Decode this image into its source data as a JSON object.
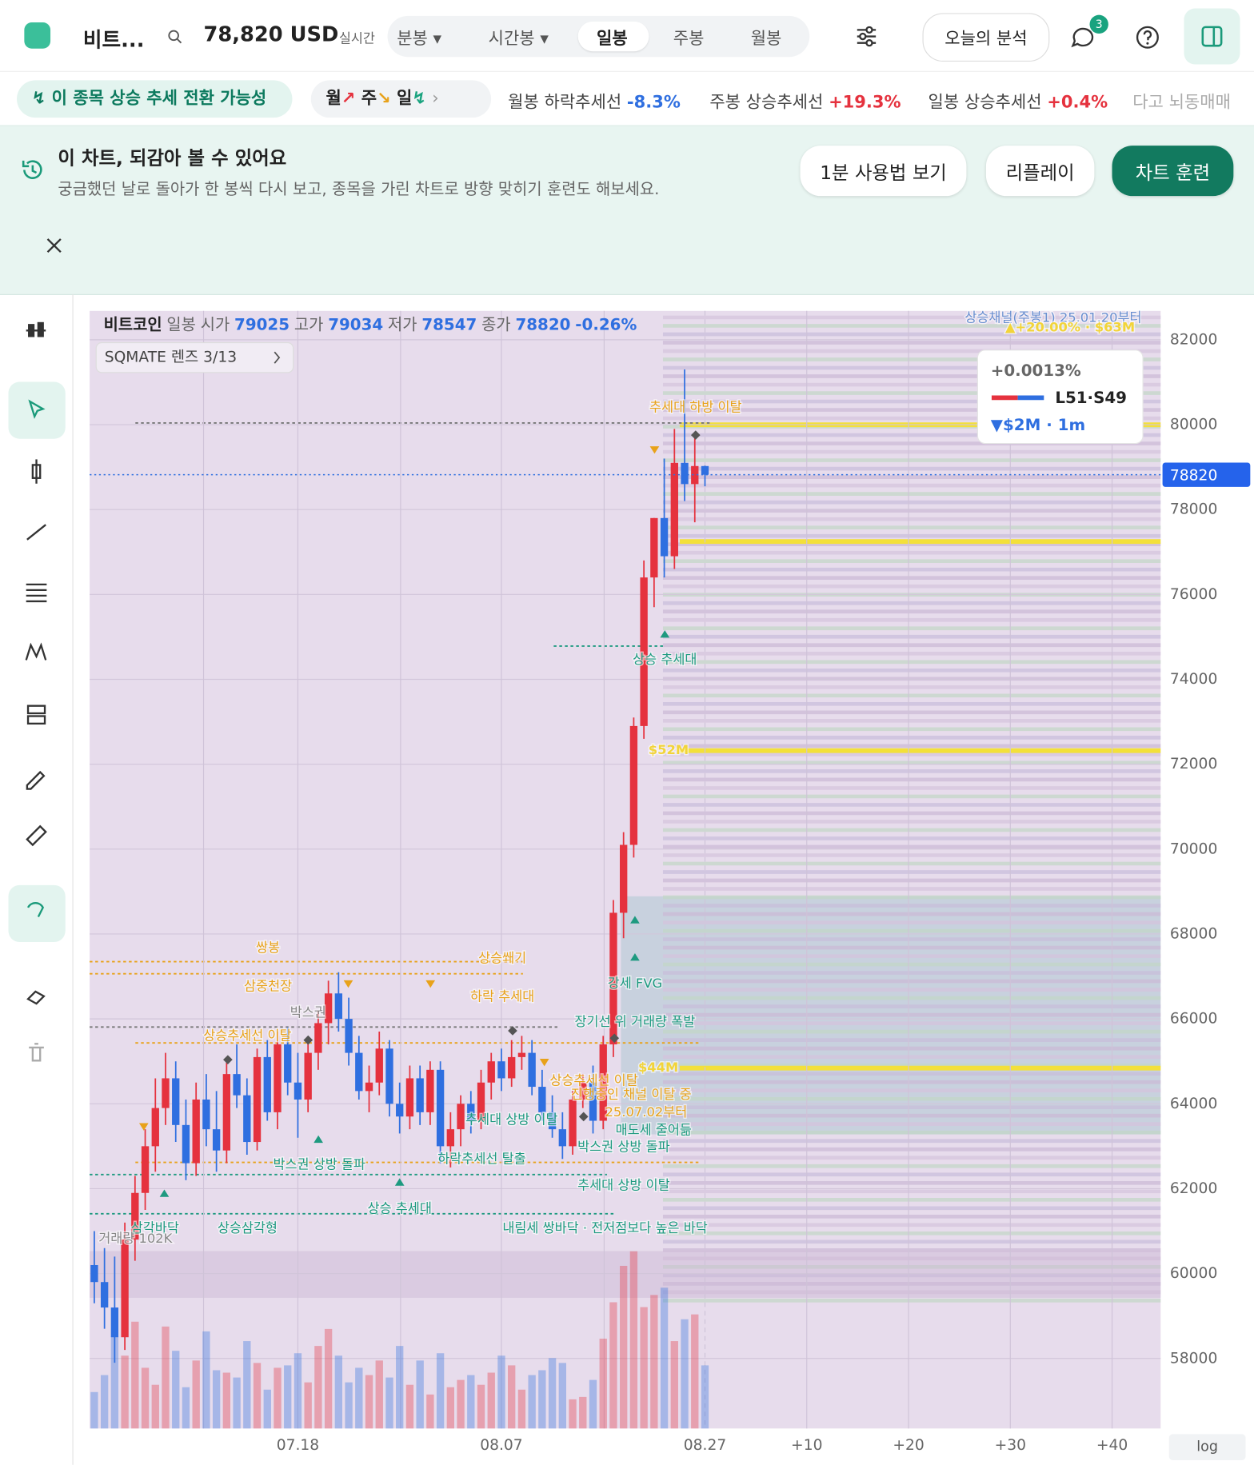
{
  "header": {
    "symbol": "비트...",
    "price": "78,820 USD",
    "realtime": "실시간",
    "tabs": [
      "분봉",
      "시간봉",
      "일봉",
      "주봉",
      "월봉"
    ],
    "analysis": "오늘의 분석",
    "badge": "3"
  },
  "signals": {
    "main": "이 종목 상승 추세 전환 가능성",
    "periods": [
      "월",
      "주",
      "일"
    ],
    "items": [
      {
        "label": "월봉 하락추세선",
        "value": "-8.3%"
      },
      {
        "label": "주봉 상승추세선",
        "value": "+19.3%"
      },
      {
        "label": "일봉 상승추세선",
        "value": "+0.4%"
      }
    ],
    "more": "다고 뇌동매매"
  },
  "banner": {
    "title": "이 차트, 되감아 볼 수 있어요",
    "text": "궁금했던 날로 돌아가 한 봉씩 다시 보고, 종목을 가린 차트로 방향 맞히기 훈련도 해보세요.",
    "buttons": [
      "1분 사용법 보기",
      "리플레이",
      "차트 훈련"
    ]
  },
  "chart_data": {
    "type": "candlestick",
    "legend": {
      "name": "비트코인",
      "period": "일봉",
      "open_label": "시가",
      "open": 79025,
      "high_label": "고가",
      "high": 79034,
      "low_label": "저가",
      "low": 78547,
      "close_label": "종가",
      "close": 78820,
      "change": "-0.26%"
    },
    "lens": "SQMATE 렌즈  3/13",
    "tooltip": {
      "pct": "+0.0013%",
      "ratio": "L51·S49",
      "flow": "▼$2M · 1m"
    },
    "current_price": 78820,
    "up_color": "#e5323e",
    "down_color": "#2f6fe0",
    "ylim": [
      56350,
      82680
    ],
    "yticks": [
      58000,
      60000,
      62000,
      64000,
      66000,
      68000,
      70000,
      72000,
      74000,
      76000,
      78000,
      80000,
      82000
    ],
    "categories": [
      null,
      null,
      null,
      null,
      null,
      null,
      null,
      null,
      null,
      null,
      null,
      null,
      null,
      null,
      null,
      null,
      null,
      null,
      null,
      null,
      "07.18",
      null,
      null,
      null,
      null,
      null,
      null,
      null,
      null,
      null,
      null,
      null,
      null,
      null,
      null,
      null,
      null,
      null,
      null,
      null,
      "08.07",
      null,
      null,
      null,
      null,
      null,
      null,
      null,
      null,
      null,
      null,
      null,
      null,
      null,
      null,
      null,
      null,
      null,
      null,
      null,
      "08.27"
    ],
    "future_ticks": [
      "+10",
      "+20",
      "+30",
      "+40"
    ],
    "scale_mode": "log",
    "candles": [
      [
        60200,
        61000,
        59300,
        59800
      ],
      [
        59800,
        60600,
        58700,
        59200
      ],
      [
        59200,
        60400,
        57900,
        58500
      ],
      [
        58500,
        61200,
        58200,
        60800
      ],
      [
        60800,
        62300,
        60300,
        61900
      ],
      [
        61900,
        63400,
        61500,
        63000
      ],
      [
        63000,
        64600,
        62400,
        63900
      ],
      [
        63900,
        65200,
        63500,
        64600
      ],
      [
        64600,
        65000,
        63100,
        63500
      ],
      [
        63500,
        64100,
        62200,
        62600
      ],
      [
        62600,
        64500,
        62300,
        64100
      ],
      [
        64100,
        64700,
        63000,
        63400
      ],
      [
        63400,
        64300,
        62400,
        62900
      ],
      [
        62900,
        65000,
        62600,
        64700
      ],
      [
        64700,
        65400,
        63900,
        64200
      ],
      [
        64200,
        64600,
        62800,
        63100
      ],
      [
        63100,
        65300,
        62900,
        65100
      ],
      [
        65100,
        65500,
        63600,
        63800
      ],
      [
        63800,
        65700,
        63400,
        65400
      ],
      [
        65400,
        65800,
        64200,
        64500
      ],
      [
        64500,
        65200,
        63200,
        64100
      ],
      [
        64100,
        65500,
        63800,
        65200
      ],
      [
        65200,
        66200,
        64800,
        65900
      ],
      [
        65900,
        66900,
        65400,
        66600
      ],
      [
        66600,
        67100,
        65700,
        66000
      ],
      [
        66000,
        66500,
        64900,
        65200
      ],
      [
        65200,
        65600,
        64100,
        64300
      ],
      [
        64300,
        64900,
        63800,
        64500
      ],
      [
        64500,
        65700,
        64200,
        65300
      ],
      [
        65300,
        65500,
        63700,
        64000
      ],
      [
        64000,
        64500,
        63300,
        63700
      ],
      [
        63700,
        64900,
        63400,
        64600
      ],
      [
        64600,
        64900,
        63500,
        63800
      ],
      [
        63800,
        65000,
        63500,
        64800
      ],
      [
        64800,
        65000,
        62600,
        63000
      ],
      [
        63000,
        63800,
        62500,
        63400
      ],
      [
        63400,
        64200,
        63000,
        64000
      ],
      [
        64000,
        64300,
        63300,
        63600
      ],
      [
        63600,
        64800,
        63400,
        64500
      ],
      [
        64500,
        65200,
        64100,
        65000
      ],
      [
        65000,
        65300,
        64300,
        64600
      ],
      [
        64600,
        65500,
        64400,
        65100
      ],
      [
        65100,
        65600,
        64800,
        65200
      ],
      [
        65200,
        65500,
        64200,
        64400
      ],
      [
        64400,
        64800,
        63600,
        63800
      ],
      [
        63800,
        64200,
        63200,
        63400
      ],
      [
        63400,
        63800,
        62700,
        63000
      ],
      [
        63000,
        64300,
        62800,
        64100
      ],
      [
        64100,
        64700,
        63900,
        64500
      ],
      [
        64500,
        64900,
        63300,
        63600
      ],
      [
        63600,
        65600,
        63400,
        65400
      ],
      [
        65400,
        68800,
        65100,
        68500
      ],
      [
        68500,
        70400,
        67900,
        70100
      ],
      [
        70100,
        73100,
        69800,
        72900
      ],
      [
        72900,
        76800,
        72600,
        76400
      ],
      [
        76400,
        77800,
        75700,
        77800
      ],
      [
        77800,
        79200,
        76400,
        76900
      ],
      [
        76900,
        79900,
        76600,
        79100
      ],
      [
        79100,
        81300,
        78200,
        78600
      ],
      [
        78600,
        79800,
        77700,
        79025
      ],
      [
        79025,
        79034,
        78547,
        78820
      ]
    ],
    "volumes": [
      15,
      22,
      38,
      30,
      44,
      25,
      18,
      42,
      32,
      17,
      28,
      40,
      24,
      23,
      21,
      36,
      27,
      16,
      25,
      26,
      31,
      19,
      34,
      41,
      30,
      19,
      25,
      22,
      28,
      21,
      34,
      18,
      28,
      14,
      31,
      17,
      20,
      22,
      18,
      23,
      30,
      26,
      16,
      22,
      24,
      29,
      27,
      12,
      13,
      20,
      37,
      52,
      67,
      73,
      50,
      55,
      58,
      36,
      45,
      47,
      26
    ],
    "annotations": [
      "쌍봉",
      "삼중천장",
      "박스권",
      "상승추세선 이탈",
      "상승쐐기",
      "하락 추세대",
      "강세 FVG",
      "장기선 위 거래량 폭발",
      "$44M",
      "상승추세선 이탈",
      "진행중인 채널 이탈 중",
      "25.07.02부터",
      "추세대 상방 이탈",
      "매도세 줄어듦",
      "박스권 상방 돌파",
      "박스권 상방 돌파",
      "하락추세선 탈출",
      "추세대 상방 이탈",
      "상승 추세대",
      "삼각바닥",
      "상승삼각형",
      "내림세 쌍바닥 · 전저점보다 높은 바닥",
      "거래량 102K",
      "상승 추세대",
      "$52M",
      "추세대 하방 이탈",
      "상승채널(주봉1) 25.01.20부터",
      "▲+20.00% · $63M"
    ]
  }
}
